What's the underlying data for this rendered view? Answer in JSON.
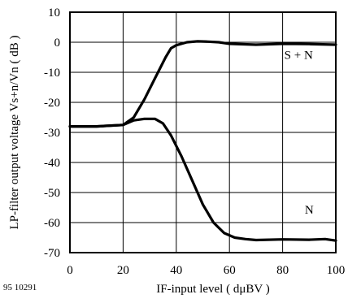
{
  "figure_id": "95 10291",
  "chart_data": {
    "type": "line",
    "title": "",
    "xlabel": "IF-input level ( dμBV )",
    "ylabel": "LP-filter output voltage Vs+n/Vn ( dB )",
    "xlim": [
      0,
      100
    ],
    "ylim": [
      -70,
      10
    ],
    "x_ticks": [
      0,
      20,
      40,
      60,
      80,
      100
    ],
    "y_ticks": [
      10,
      0,
      -10,
      -20,
      -30,
      -40,
      -50,
      -60,
      -70
    ],
    "x_tick_labels": [
      "0",
      "20",
      "40",
      "60",
      "80",
      "100"
    ],
    "y_tick_labels": [
      "10",
      "0",
      "-10",
      "-20",
      "-30",
      "-40",
      "-50",
      "-60",
      "-70"
    ],
    "grid": true,
    "series": [
      {
        "name": "S + N",
        "x": [
          0,
          10,
          20,
          24,
          28,
          32,
          36,
          38,
          40,
          44,
          48,
          52,
          56,
          60,
          70,
          80,
          90,
          100
        ],
        "y": [
          -28,
          -28,
          -27.5,
          -25,
          -19,
          -12,
          -5,
          -2,
          -1,
          0,
          0.3,
          0.2,
          0,
          -0.5,
          -0.8,
          -0.5,
          -0.6,
          -0.8
        ]
      },
      {
        "name": "N",
        "x": [
          0,
          10,
          20,
          24,
          28,
          32,
          35,
          38,
          42,
          46,
          50,
          54,
          58,
          62,
          66,
          70,
          80,
          90,
          96,
          100
        ],
        "y": [
          -28,
          -28,
          -27.5,
          -26,
          -25.5,
          -25.5,
          -27,
          -31,
          -38,
          -46,
          -54,
          -60,
          -63.5,
          -65,
          -65.5,
          -65.8,
          -65.6,
          -65.7,
          -65.5,
          -66
        ]
      }
    ]
  }
}
